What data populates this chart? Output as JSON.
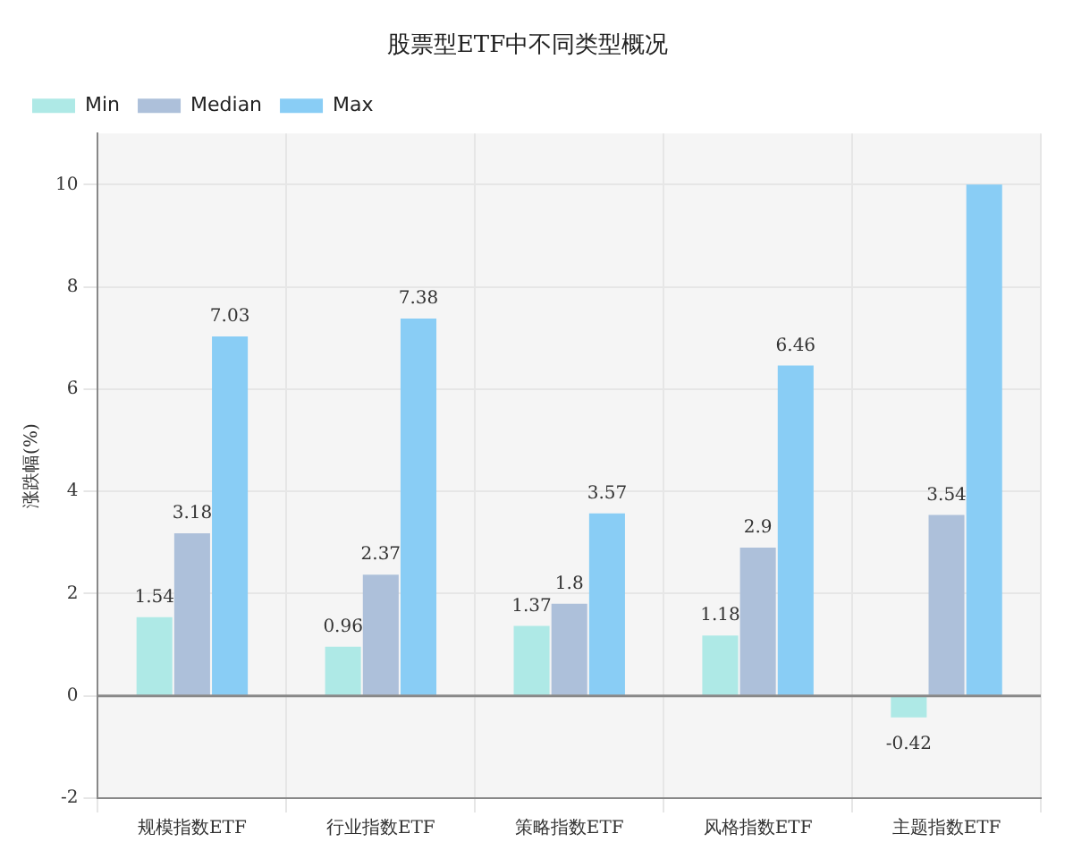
{
  "chart_data": {
    "type": "bar",
    "title": "股票型ETF中不同类型概况",
    "ylabel": "涨跌幅(%)",
    "categories": [
      "规模指数ETF",
      "行业指数ETF",
      "策略指数ETF",
      "风格指数ETF",
      "主题指数ETF"
    ],
    "series": [
      {
        "name": "Min",
        "color": "#aee9e6",
        "values": [
          1.54,
          0.96,
          1.37,
          1.18,
          -0.42
        ],
        "value_labels": [
          "1.54",
          "0.96",
          "1.37",
          "1.18",
          "-0.42"
        ]
      },
      {
        "name": "Median",
        "color": "#adc0da",
        "values": [
          3.18,
          2.37,
          1.8,
          2.9,
          3.54
        ],
        "value_labels": [
          "3.18",
          "2.37",
          "1.8",
          "2.9",
          "3.54"
        ]
      },
      {
        "name": "Max",
        "color": "#89cdf5",
        "values": [
          7.03,
          7.38,
          3.57,
          6.46,
          10
        ],
        "value_labels": [
          "7.03",
          "7.38",
          "3.57",
          "6.46",
          null
        ]
      }
    ],
    "ylim": [
      -2,
      11
    ],
    "yticks": [
      -2,
      0,
      2,
      4,
      6,
      8,
      10
    ],
    "grid": true,
    "legend": "top left",
    "ref_lines": [
      {
        "axis": "y",
        "value": 0,
        "color": "#888888"
      }
    ]
  }
}
